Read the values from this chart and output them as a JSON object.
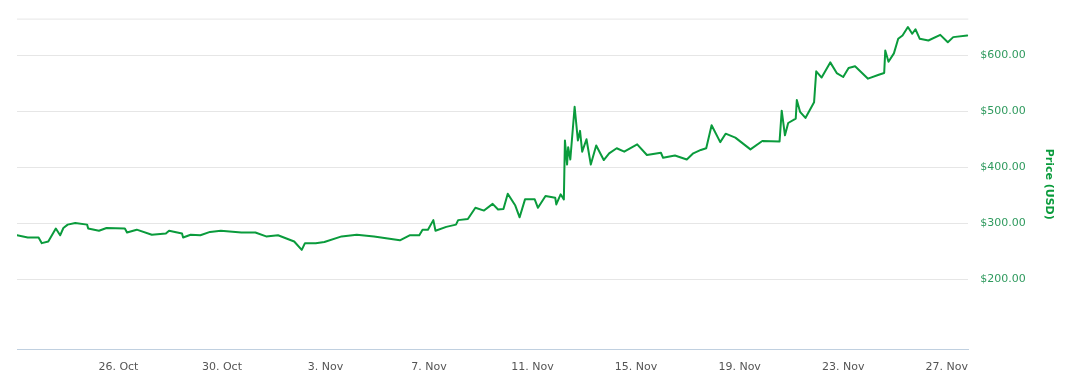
{
  "chart_data": {
    "type": "line",
    "ylabel": "Price (USD)",
    "x": [
      "--10-22T02:00",
      "--10-22T12:00",
      "--10-22T22:00",
      "--10-23T01:00",
      "--10-23T07:00",
      "--10-23T14:00",
      "--10-23T18:00",
      "--10-23T21:00",
      "--10-24T01:00",
      "--10-24T08:00",
      "--10-24T19:00",
      "--10-24T20:00",
      "--10-25T06:00",
      "--10-25T13:00",
      "--10-26T06:00",
      "--10-26T08:00",
      "--10-26T17:00",
      "--10-27T07:00",
      "--10-27T20:00",
      "--10-27T23:00",
      "--10-28T11:00",
      "--10-28T12:00",
      "--10-28T19:00",
      "--10-29T04:00",
      "--10-29T13:00",
      "--10-29T23:00",
      "--10-30T18:00",
      "--10-31T07:00",
      "--10-31T17:00",
      "--11-01T04:00",
      "--11-01T19:00",
      "--11-02T02:00",
      "--11-02T05:00",
      "--11-02T15:00",
      "--11-02T23:00",
      "--11-03T15:00",
      "--11-04T05:00",
      "--11-04T21:00",
      "--11-05T21:00",
      "--11-06T06:00",
      "--11-06T15:00",
      "--11-06T18:00",
      "--11-06T23:00",
      "--11-07T04:00",
      "--11-07T06:00",
      "--11-07T16:00",
      "--11-08T01:00",
      "--11-08T03:00",
      "--11-08T12:00",
      "--11-08T19:00",
      "--11-09T03:00",
      "--11-09T11:00",
      "--11-09T16:00",
      "--11-09T21:00",
      "--11-10T01:00",
      "--11-10T08:00",
      "--11-10T12:00",
      "--11-10T17:00",
      "--11-11T02:00",
      "--11-11T05:00",
      "--11-11T12:00",
      "--11-11T21:00",
      "--11-11T22:00",
      "--11-12T02:00",
      "--11-12T05:00",
      "--11-12T06:00",
      "--11-12T08:00",
      "--11-12T09:00",
      "--11-12T11:00",
      "--11-12T15:00",
      "--11-12T18:00",
      "--11-12T20:00",
      "--11-12T22:00",
      "--11-13T02:00",
      "--11-13T06:00",
      "--11-13T11:00",
      "--11-13T18:00",
      "--11-13T23:00",
      "--11-14T06:00",
      "--11-14T13:00",
      "--11-15T01:00",
      "--11-15T10:00",
      "--11-15T23:00",
      "--11-16T01:00",
      "--11-16T12:00",
      "--11-16T23:00",
      "--11-17T05:00",
      "--11-17T12:00",
      "--11-17T17:00",
      "--11-17T22:00",
      "--11-18T06:00",
      "--11-18T11:00",
      "--11-18T20:00",
      "--11-19T10:00",
      "--11-19T21:00",
      "--11-20T13:00",
      "--11-20T15:00",
      "--11-20T18:00",
      "--11-20T21:00",
      "--11-21T04:00",
      "--11-21T05:00",
      "--11-21T08:00",
      "--11-21T13:00",
      "--11-21T21:00",
      "--11-21T23:00",
      "--11-22T04:00",
      "--11-22T12:00",
      "--11-22T18:00",
      "--11-23T00:00",
      "--11-23T05:00",
      "--11-23T11:00",
      "--11-23T23:00",
      "--11-24T09:00",
      "--11-24T14:00",
      "--11-24T15:00",
      "--11-24T18:00",
      "--11-24T23:00",
      "--11-25T03:00",
      "--11-25T07:00",
      "--11-25T12:00",
      "--11-25T16:00",
      "--11-25T19:00",
      "--11-25T23:00",
      "--11-26T07:00",
      "--11-26T18:00",
      "--11-27T01:00",
      "--11-27T06:00",
      "--11-27T19:00"
    ],
    "series": [
      {
        "color": "#0a9b3c",
        "values": [
          279,
          275,
          275,
          265,
          268,
          291,
          279,
          292,
          298,
          301,
          298,
          291,
          287,
          292,
          291,
          284,
          289,
          280,
          282,
          287,
          282,
          275,
          280,
          279,
          285,
          287,
          284,
          284,
          277,
          279,
          268,
          253,
          265,
          265,
          267,
          277,
          280,
          277,
          270,
          279,
          279,
          289,
          289,
          306,
          287,
          294,
          298,
          306,
          308,
          328,
          323,
          335,
          325,
          326,
          353,
          332,
          311,
          343,
          343,
          328,
          349,
          346,
          334,
          352,
          343,
          448,
          405,
          436,
          414,
          508,
          448,
          465,
          428,
          450,
          405,
          439,
          413,
          425,
          434,
          428,
          441,
          422,
          426,
          417,
          421,
          414,
          425,
          431,
          434,
          475,
          445,
          460,
          453,
          432,
          447,
          446,
          501,
          457,
          479,
          487,
          520,
          499,
          488,
          516,
          571,
          560,
          587,
          568,
          561,
          577,
          580,
          558,
          565,
          568,
          608,
          588,
          603,
          629,
          635,
          650,
          638,
          646,
          629,
          626,
          636,
          623,
          632,
          635
        ]
      }
    ],
    "xlim": [
      "--10-22T02:00",
      "--11-27T20:00"
    ],
    "xticks": [
      {
        "value": "--10-26",
        "label": "26. Oct"
      },
      {
        "value": "--10-30",
        "label": "30. Oct"
      },
      {
        "value": "--11-03",
        "label": "3. Nov"
      },
      {
        "value": "--11-07",
        "label": "7. Nov"
      },
      {
        "value": "--11-11",
        "label": "11. Nov"
      },
      {
        "value": "--11-15",
        "label": "15. Nov"
      },
      {
        "value": "--11-19",
        "label": "19. Nov"
      },
      {
        "value": "--11-23",
        "label": "23. Nov"
      },
      {
        "value": "--11-27",
        "label": "27. Nov"
      }
    ],
    "ylim": [
      75,
      665
    ],
    "yticks": [
      {
        "value": 200,
        "label": "$200.00"
      },
      {
        "value": 300,
        "label": "$300.00"
      },
      {
        "value": 400,
        "label": "$400.00"
      },
      {
        "value": 500,
        "label": "$500.00"
      },
      {
        "value": 600,
        "label": "$600.00"
      }
    ],
    "grid": "y",
    "marker": "none",
    "line_style": "solid",
    "legend": false
  }
}
